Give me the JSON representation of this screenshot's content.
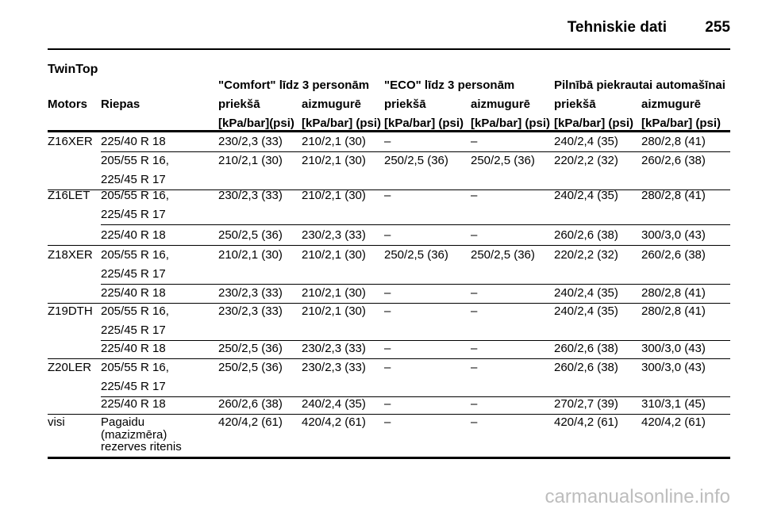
{
  "header": {
    "title": "Tehniskie dati",
    "page": "255"
  },
  "section": "TwinTop",
  "table": {
    "columns": [
      "Motors",
      "Riepas"
    ],
    "groups": [
      "\"Comfort\" līdz 3 personām",
      "\"ECO\" līdz 3 personām",
      "Pilnībā piekrautai automašīnai"
    ],
    "subheaders": [
      "priekšā",
      "aizmugurē",
      "priekšā",
      "aizmugurē",
      "priekšā",
      "aizmugurē"
    ],
    "units": [
      "[kPa/bar](psi)",
      "[kPa/bar] (psi)",
      "[kPa/bar] (psi)",
      "[kPa/bar] (psi)",
      "[kPa/bar] (psi)",
      "[kPa/bar] (psi)"
    ],
    "rows": [
      {
        "motors": "Z16XER",
        "riepas": [
          "225/40 R 18"
        ],
        "cells": [
          "230/2,3 (33)",
          "210/2,1 (30)",
          "–",
          "–",
          "240/2,4 (35)",
          "280/2,8 (41)"
        ]
      },
      {
        "riepas": [
          "205/55 R 16,",
          "225/45 R 17"
        ],
        "cells": [
          "210/2,1 (30)",
          "210/2,1 (30)",
          "250/2,5 (36)",
          "250/2,5 (36)",
          "220/2,2 (32)",
          "260/2,6 (38)"
        ]
      },
      {
        "motors": "Z16LET",
        "riepas": [
          "205/55 R 16,",
          "225/45 R 17"
        ],
        "cells": [
          "230/2,3 (33)",
          "210/2,1 (30)",
          "–",
          "–",
          "240/2,4 (35)",
          "280/2,8 (41)"
        ]
      },
      {
        "riepas": [
          "225/40 R 18"
        ],
        "cells": [
          "250/2,5 (36)",
          "230/2,3 (33)",
          "–",
          "–",
          "260/2,6 (38)",
          "300/3,0 (43)"
        ]
      },
      {
        "motors": "Z18XER",
        "riepas": [
          "205/55 R 16,",
          "225/45 R 17"
        ],
        "cells": [
          "210/2,1 (30)",
          "210/2,1 (30)",
          "250/2,5 (36)",
          "250/2,5 (36)",
          "220/2,2 (32)",
          "260/2,6 (38)"
        ]
      },
      {
        "riepas": [
          "225/40 R 18"
        ],
        "cells": [
          "230/2,3 (33)",
          "210/2,1 (30)",
          "–",
          "–",
          "240/2,4 (35)",
          "280/2,8 (41)"
        ]
      },
      {
        "motors": "Z19DTH",
        "riepas": [
          "205/55 R 16,",
          "225/45 R 17"
        ],
        "cells": [
          "230/2,3 (33)",
          "210/2,1 (30)",
          "–",
          "–",
          "240/2,4 (35)",
          "280/2,8 (41)"
        ]
      },
      {
        "riepas": [
          "225/40 R 18"
        ],
        "cells": [
          "250/2,5 (36)",
          "230/2,3 (33)",
          "–",
          "–",
          "260/2,6 (38)",
          "300/3,0 (43)"
        ]
      },
      {
        "motors": "Z20LER",
        "riepas": [
          "205/55 R 16,",
          "225/45 R 17"
        ],
        "cells": [
          "250/2,5 (36)",
          "230/2,3 (33)",
          "–",
          "–",
          "260/2,6 (38)",
          "300/3,0 (43)"
        ]
      },
      {
        "riepas": [
          "225/40 R 18"
        ],
        "cells": [
          "260/2,6 (38)",
          "240/2,4 (35)",
          "–",
          "–",
          "270/2,7 (39)",
          "310/3,1 (45)"
        ]
      },
      {
        "motors": "visi",
        "riepas": [
          "Pagaidu",
          "(mazizmēra)",
          "rezerves ritenis"
        ],
        "cells": [
          "420/4,2 (61)",
          "420/4,2 (61)",
          "–",
          "–",
          "420/4,2 (61)",
          "420/4,2 (61)"
        ]
      }
    ]
  },
  "watermark": "carmanualsonline.info"
}
